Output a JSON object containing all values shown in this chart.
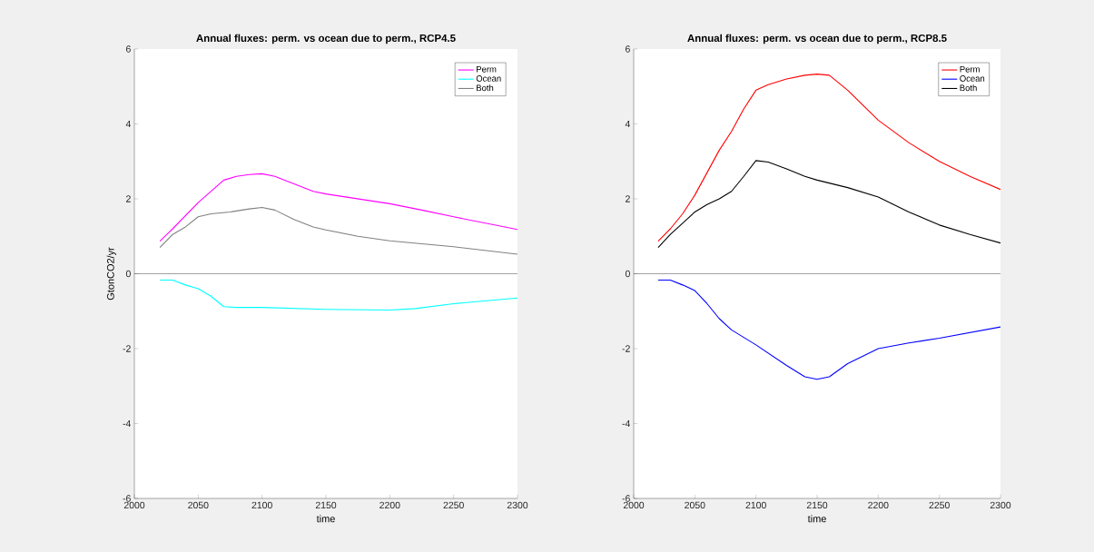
{
  "chart_data": [
    {
      "type": "line",
      "title": "Annual fluxes: perm. vs ocean due to perm., RCP4.5",
      "xlabel": "time",
      "ylabel": "GtonCO2/yr",
      "xlim": [
        2000,
        2300
      ],
      "ylim": [
        -6,
        6
      ],
      "xticks": [
        2000,
        2050,
        2100,
        2150,
        2200,
        2250,
        2300
      ],
      "yticks": [
        -6,
        -4,
        -2,
        0,
        2,
        4,
        6
      ],
      "legend": "top right",
      "grid": false,
      "ref_lines": [
        {
          "axis": "y",
          "value": 0,
          "color": "#404040"
        }
      ],
      "series": [
        {
          "name": "Perm",
          "color": "#ff00ff",
          "x": [
            2020,
            2030,
            2040,
            2050,
            2060,
            2070,
            2080,
            2090,
            2100,
            2110,
            2125,
            2140,
            2150,
            2175,
            2200,
            2225,
            2250,
            2275,
            2300
          ],
          "values": [
            0.87,
            1.2,
            1.55,
            1.9,
            2.2,
            2.5,
            2.6,
            2.65,
            2.67,
            2.6,
            2.4,
            2.2,
            2.13,
            2.0,
            1.87,
            1.7,
            1.52,
            1.35,
            1.18
          ]
        },
        {
          "name": "Ocean",
          "color": "#00ffff",
          "x": [
            2020,
            2030,
            2040,
            2050,
            2060,
            2070,
            2080,
            2100,
            2150,
            2200,
            2220,
            2250,
            2300
          ],
          "values": [
            -0.17,
            -0.17,
            -0.3,
            -0.4,
            -0.6,
            -0.88,
            -0.9,
            -0.9,
            -0.95,
            -0.97,
            -0.93,
            -0.8,
            -0.65
          ]
        },
        {
          "name": "Both",
          "color": "#808080",
          "x": [
            2020,
            2030,
            2040,
            2050,
            2060,
            2075,
            2090,
            2100,
            2110,
            2125,
            2140,
            2150,
            2175,
            2200,
            2225,
            2250,
            2275,
            2300
          ],
          "values": [
            0.7,
            1.05,
            1.25,
            1.52,
            1.6,
            1.65,
            1.73,
            1.77,
            1.7,
            1.45,
            1.25,
            1.17,
            1.0,
            0.88,
            0.8,
            0.72,
            0.62,
            0.52
          ]
        }
      ]
    },
    {
      "type": "line",
      "title": "Annual fluxes: perm. vs ocean due to perm., RCP8.5",
      "xlabel": "time",
      "xlim": [
        2000,
        2300
      ],
      "ylim": [
        -6,
        6
      ],
      "xticks": [
        2000,
        2050,
        2100,
        2150,
        2200,
        2250,
        2300
      ],
      "yticks": [
        -6,
        -4,
        -2,
        0,
        2,
        4,
        6
      ],
      "legend": "top right",
      "grid": false,
      "ref_lines": [
        {
          "axis": "y",
          "value": 0,
          "color": "#404040"
        }
      ],
      "series": [
        {
          "name": "Perm",
          "color": "#ff0000",
          "x": [
            2020,
            2030,
            2040,
            2050,
            2060,
            2070,
            2080,
            2090,
            2100,
            2110,
            2125,
            2140,
            2150,
            2160,
            2175,
            2200,
            2225,
            2250,
            2275,
            2300
          ],
          "values": [
            0.87,
            1.2,
            1.6,
            2.1,
            2.7,
            3.3,
            3.8,
            4.4,
            4.9,
            5.05,
            5.2,
            5.3,
            5.33,
            5.3,
            4.9,
            4.1,
            3.5,
            3.0,
            2.6,
            2.25
          ]
        },
        {
          "name": "Ocean",
          "color": "#0000ff",
          "x": [
            2020,
            2030,
            2040,
            2050,
            2060,
            2070,
            2080,
            2100,
            2125,
            2140,
            2150,
            2160,
            2175,
            2200,
            2225,
            2250,
            2300
          ],
          "values": [
            -0.17,
            -0.17,
            -0.3,
            -0.45,
            -0.8,
            -1.2,
            -1.5,
            -1.9,
            -2.45,
            -2.75,
            -2.82,
            -2.75,
            -2.4,
            -2.0,
            -1.85,
            -1.72,
            -1.42
          ]
        },
        {
          "name": "Both",
          "color": "#000000",
          "x": [
            2020,
            2030,
            2040,
            2050,
            2060,
            2070,
            2080,
            2090,
            2100,
            2110,
            2125,
            2140,
            2150,
            2175,
            2200,
            2225,
            2250,
            2275,
            2300
          ],
          "values": [
            0.7,
            1.05,
            1.35,
            1.65,
            1.85,
            2.0,
            2.2,
            2.6,
            3.02,
            2.98,
            2.8,
            2.6,
            2.5,
            2.3,
            2.05,
            1.65,
            1.3,
            1.05,
            0.82
          ]
        }
      ]
    }
  ]
}
